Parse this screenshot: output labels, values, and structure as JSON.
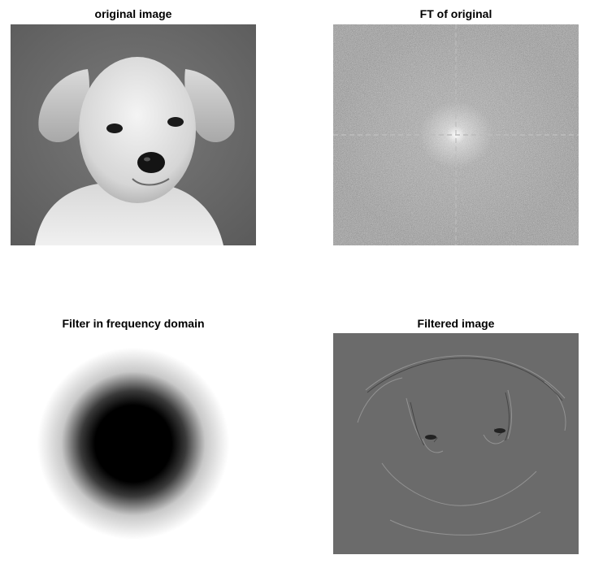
{
  "panels": {
    "original": {
      "title": "original image"
    },
    "ft": {
      "title": "FT of original"
    },
    "filter": {
      "title": "Filter in frequency domain"
    },
    "filtered": {
      "title": "Filtered image"
    }
  },
  "colors": {
    "background": "#ffffff",
    "filtered_gray": "#6b6b6b",
    "ft_gray": "#5e5e5e"
  }
}
